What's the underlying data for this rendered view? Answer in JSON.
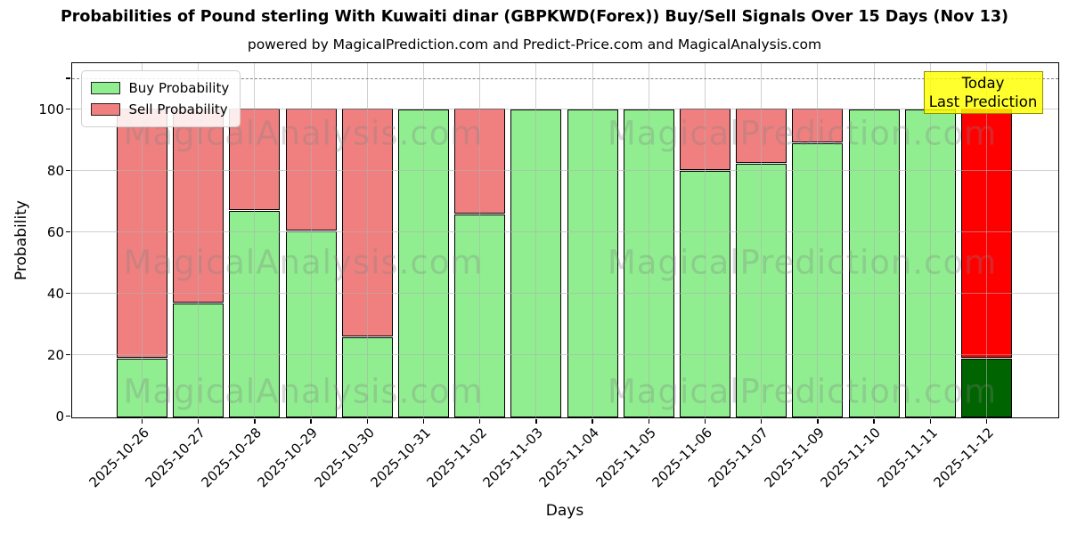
{
  "title": "Probabilities of Pound sterling With Kuwaiti dinar (GBPKWD(Forex)) Buy/Sell Signals Over 15 Days (Nov 13)",
  "subtitle": "powered by MagicalPrediction.com and Predict-Price.com and MagicalAnalysis.com",
  "annotation": {
    "line1": "Today",
    "line2": "Last Prediction",
    "bg": "#ffff00"
  },
  "legend": {
    "items": [
      {
        "label": "Buy Probability",
        "color": "#90ee90"
      },
      {
        "label": "Sell Probability",
        "color": "#f08080"
      }
    ]
  },
  "watermarks": {
    "left": "MagicalAnalysis.com",
    "right": "MagicalPrediction.com"
  },
  "chart_data": {
    "type": "bar",
    "stacked": true,
    "title": "Probabilities of Pound sterling With Kuwaiti dinar (GBPKWD(Forex)) Buy/Sell Signals Over 15 Days (Nov 13)",
    "xlabel": "Days",
    "ylabel": "Probability",
    "categories": [
      "2025-10-26",
      "2025-10-27",
      "2025-10-28",
      "2025-10-29",
      "2025-10-30",
      "2025-10-31",
      "2025-11-02",
      "2025-11-03",
      "2025-11-04",
      "2025-11-05",
      "2025-11-06",
      "2025-11-07",
      "2025-11-09",
      "2025-11-10",
      "2025-11-11",
      "2025-11-12"
    ],
    "series": [
      {
        "name": "Buy Probability",
        "color": "#90ee90",
        "values": [
          19,
          37,
          67,
          60.5,
          26,
          100,
          66,
          100,
          100,
          100,
          80,
          82.5,
          89,
          100,
          100,
          19
        ]
      },
      {
        "name": "Sell Probability",
        "color": "#f08080",
        "values": [
          81,
          63,
          33,
          39.5,
          74,
          0,
          34,
          0,
          0,
          0,
          20,
          17.5,
          11,
          0,
          0,
          81
        ]
      }
    ],
    "last_bar_override": {
      "buy_color": "#006400",
      "sell_color": "#ff0000"
    },
    "yticks": [
      0,
      20,
      40,
      60,
      80,
      100
    ],
    "ylim": [
      0,
      115
    ],
    "dashed_line_y": 110,
    "grid": true,
    "legend_position": "upper-left"
  }
}
